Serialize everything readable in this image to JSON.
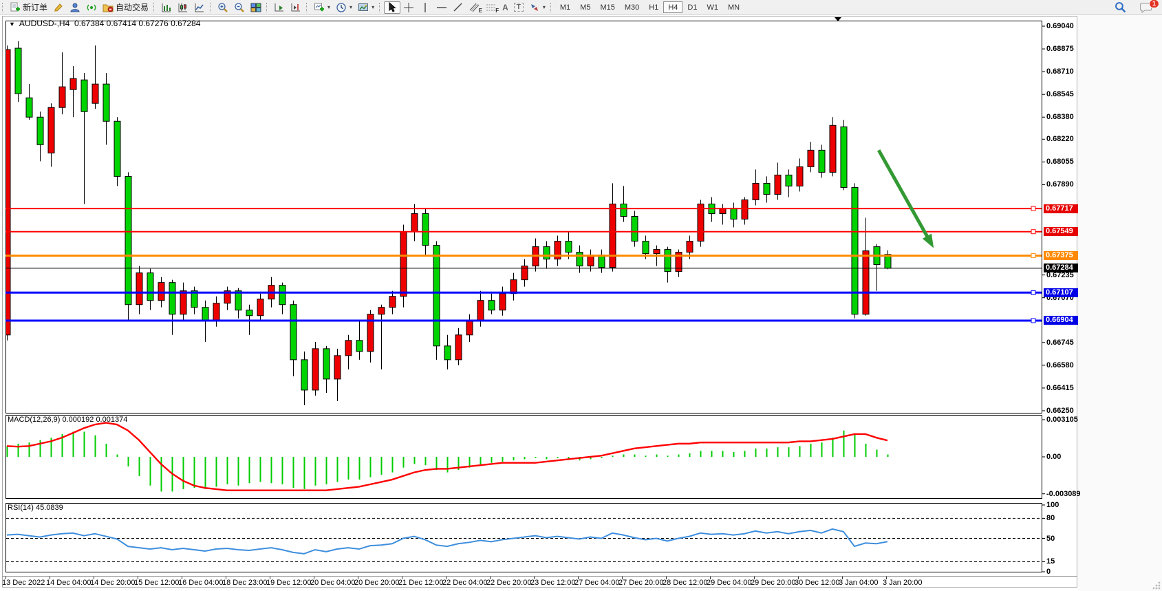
{
  "window": {
    "symbol_period": "AUDUSD-,H4",
    "ohlc_line": "0.67384 0.67414 0.67276 0.67284",
    "open": "0.67384",
    "high": "0.67414",
    "low": "0.67276",
    "close": "0.67284"
  },
  "toolbar": {
    "new_order_label": "新订单",
    "auto_trading_label": "自动交易",
    "channel_tool_letter": "E",
    "fibo_tool_letter": "F",
    "text_tool_letter": "A",
    "text_label_tool_letter": "T",
    "timeframes": [
      "M1",
      "M5",
      "M15",
      "M30",
      "H1",
      "H4",
      "D1",
      "W1",
      "MN"
    ],
    "active_timeframe": "H4",
    "chat_badge": "1"
  },
  "price_axis": {
    "ticks": [
      "0.69040",
      "0.68875",
      "0.68710",
      "0.68545",
      "0.68380",
      "0.68220",
      "0.68055",
      "0.67890",
      "0.67235",
      "0.67070",
      "0.66745",
      "0.66580",
      "0.66415",
      "0.66250"
    ],
    "current_price": {
      "label": "0.67284",
      "bg": "#000000"
    }
  },
  "macd_panel": {
    "name": "MACD(12,26,9)",
    "value": "0.000192",
    "signal": "0.001374",
    "axis_ticks": [
      "0.003105",
      "0.00",
      "-0.003089"
    ]
  },
  "rsi_panel": {
    "name": "RSI(14)",
    "value": "45.0839",
    "axis_ticks": [
      "100",
      "80",
      "50",
      "15",
      "0"
    ]
  },
  "time_axis": [
    "13 Dec 2022",
    "14 Dec 04:00",
    "14 Dec 20:00",
    "15 Dec 12:00",
    "16 Dec 04:00",
    "18 Dec 23:00",
    "19 Dec 12:00",
    "20 Dec 04:00",
    "20 Dec 20:00",
    "21 Dec 12:00",
    "22 Dec 04:00",
    "22 Dec 20:00",
    "23 Dec 12:00",
    "27 Dec 04:00",
    "27 Dec 20:00",
    "28 Dec 12:00",
    "29 Dec 04:00",
    "29 Dec 20:00",
    "30 Dec 12:00",
    "3 Jan 04:00",
    "3 Jan 20:00"
  ],
  "chart_data": [
    {
      "type": "candlestick",
      "symbol": "AUDUSD-",
      "timeframe": "H4",
      "ylim": [
        0.66235,
        0.6908
      ],
      "grid": false,
      "color_convention": "red = bullish, green = bearish",
      "up_color": "#EE0000",
      "down_color": "#00D400",
      "x_labels_every_bars": 4,
      "candles": [
        [
          0.668,
          0.689,
          0.6676,
          0.6887
        ],
        [
          0.6888,
          0.6893,
          0.6849,
          0.6855
        ],
        [
          0.6852,
          0.6862,
          0.6836,
          0.6838
        ],
        [
          0.6838,
          0.6842,
          0.6806,
          0.6818
        ],
        [
          0.6812,
          0.6848,
          0.6802,
          0.6845
        ],
        [
          0.6845,
          0.6885,
          0.684,
          0.686
        ],
        [
          0.6858,
          0.6875,
          0.6838,
          0.6866
        ],
        [
          0.6865,
          0.687,
          0.6775,
          0.6842
        ],
        [
          0.6848,
          0.689,
          0.6844,
          0.6862
        ],
        [
          0.6862,
          0.687,
          0.6818,
          0.6835
        ],
        [
          0.6835,
          0.6838,
          0.6788,
          0.6795
        ],
        [
          0.6795,
          0.6798,
          0.669,
          0.6702
        ],
        [
          0.6702,
          0.673,
          0.6695,
          0.6725
        ],
        [
          0.6725,
          0.6728,
          0.6698,
          0.6705
        ],
        [
          0.6705,
          0.6722,
          0.67,
          0.6718
        ],
        [
          0.6718,
          0.672,
          0.668,
          0.6695
        ],
        [
          0.6695,
          0.6718,
          0.669,
          0.6712
        ],
        [
          0.6712,
          0.6715,
          0.6695,
          0.67
        ],
        [
          0.67,
          0.6705,
          0.6675,
          0.669
        ],
        [
          0.669,
          0.6708,
          0.6686,
          0.6703
        ],
        [
          0.6703,
          0.6715,
          0.6698,
          0.6712
        ],
        [
          0.6712,
          0.6714,
          0.6692,
          0.6698
        ],
        [
          0.6698,
          0.6702,
          0.668,
          0.6694
        ],
        [
          0.6694,
          0.671,
          0.669,
          0.6706
        ],
        [
          0.6706,
          0.6722,
          0.67,
          0.6716
        ],
        [
          0.6716,
          0.6718,
          0.6695,
          0.6702
        ],
        [
          0.6702,
          0.6705,
          0.665,
          0.6662
        ],
        [
          0.6662,
          0.6668,
          0.6629,
          0.664
        ],
        [
          0.664,
          0.6675,
          0.6636,
          0.667
        ],
        [
          0.667,
          0.6672,
          0.6638,
          0.6648
        ],
        [
          0.6648,
          0.667,
          0.6632,
          0.6665
        ],
        [
          0.6665,
          0.668,
          0.6655,
          0.6676
        ],
        [
          0.6676,
          0.669,
          0.6662,
          0.6668
        ],
        [
          0.6668,
          0.6698,
          0.666,
          0.6695
        ],
        [
          0.6695,
          0.6702,
          0.6655,
          0.67
        ],
        [
          0.67,
          0.6712,
          0.6695,
          0.6708
        ],
        [
          0.6708,
          0.676,
          0.67,
          0.6755
        ],
        [
          0.6755,
          0.6775,
          0.6748,
          0.6768
        ],
        [
          0.6768,
          0.6772,
          0.6738,
          0.6745
        ],
        [
          0.6745,
          0.6748,
          0.6662,
          0.6672
        ],
        [
          0.6672,
          0.668,
          0.6655,
          0.6662
        ],
        [
          0.6662,
          0.6685,
          0.6658,
          0.668
        ],
        [
          0.668,
          0.6695,
          0.6675,
          0.669
        ],
        [
          0.669,
          0.6712,
          0.6686,
          0.6705
        ],
        [
          0.6705,
          0.671,
          0.6695,
          0.6698
        ],
        [
          0.6698,
          0.6715,
          0.6694,
          0.671
        ],
        [
          0.671,
          0.6725,
          0.6705,
          0.672
        ],
        [
          0.672,
          0.6735,
          0.6715,
          0.673
        ],
        [
          0.673,
          0.675,
          0.6726,
          0.6744
        ],
        [
          0.6744,
          0.6748,
          0.6728,
          0.6735
        ],
        [
          0.6735,
          0.6752,
          0.673,
          0.6748
        ],
        [
          0.6748,
          0.6755,
          0.6735,
          0.674
        ],
        [
          0.674,
          0.6745,
          0.6725,
          0.673
        ],
        [
          0.673,
          0.6742,
          0.6726,
          0.6738
        ],
        [
          0.6738,
          0.6742,
          0.6725,
          0.6729
        ],
        [
          0.6729,
          0.679,
          0.6726,
          0.6775
        ],
        [
          0.6775,
          0.6788,
          0.6762,
          0.6766
        ],
        [
          0.6766,
          0.677,
          0.6744,
          0.6748
        ],
        [
          0.6748,
          0.6752,
          0.6735,
          0.6739
        ],
        [
          0.6739,
          0.6745,
          0.673,
          0.6742
        ],
        [
          0.6742,
          0.6744,
          0.6718,
          0.6726
        ],
        [
          0.6726,
          0.6742,
          0.6722,
          0.674
        ],
        [
          0.674,
          0.6752,
          0.6735,
          0.6748
        ],
        [
          0.6748,
          0.6778,
          0.6744,
          0.6775
        ],
        [
          0.6775,
          0.678,
          0.6762,
          0.6768
        ],
        [
          0.6768,
          0.6775,
          0.676,
          0.6772
        ],
        [
          0.6772,
          0.6776,
          0.6758,
          0.6764
        ],
        [
          0.6764,
          0.678,
          0.676,
          0.6778
        ],
        [
          0.6778,
          0.68,
          0.6774,
          0.679
        ],
        [
          0.679,
          0.6795,
          0.6776,
          0.6782
        ],
        [
          0.6782,
          0.6805,
          0.6778,
          0.6796
        ],
        [
          0.6796,
          0.68,
          0.678,
          0.6788
        ],
        [
          0.6788,
          0.6808,
          0.6784,
          0.6802
        ],
        [
          0.6802,
          0.682,
          0.6798,
          0.6814
        ],
        [
          0.6814,
          0.6818,
          0.6794,
          0.6798
        ],
        [
          0.6798,
          0.6838,
          0.6795,
          0.6832
        ],
        [
          0.6831,
          0.6836,
          0.6785,
          0.6787
        ],
        [
          0.6787,
          0.679,
          0.6692,
          0.6695
        ],
        [
          0.6695,
          0.6765,
          0.6694,
          0.6741
        ],
        [
          0.6744,
          0.6746,
          0.6712,
          0.6731
        ],
        [
          0.67384,
          0.67414,
          0.67276,
          0.67284
        ]
      ],
      "levels": [
        {
          "price": "0.67717",
          "value": 0.67717,
          "line_color": "#FF0000",
          "label_bg": "#E60000",
          "width": 2
        },
        {
          "price": "0.67549",
          "value": 0.67549,
          "line_color": "#FF0000",
          "label_bg": "#E60000",
          "width": 2
        },
        {
          "price": "0.67375",
          "value": 0.67375,
          "line_color": "#FF8A00",
          "label_bg": "#FF8A00",
          "width": 3
        },
        {
          "price": "0.67107",
          "value": 0.67107,
          "line_color": "#0000FF",
          "label_bg": "#0000E6",
          "width": 3
        },
        {
          "price": "0.66904",
          "value": 0.66904,
          "line_color": "#0000FF",
          "label_bg": "#0000E6",
          "width": 3
        }
      ],
      "current_price": {
        "value": 0.67284,
        "label": "0.67284",
        "line_color": "#000000",
        "label_bg": "#000000"
      },
      "annotation": {
        "type": "down-arrow",
        "color": "#339933",
        "from": {
          "bar": 79.2,
          "price": 0.6814
        },
        "to": {
          "bar": 84.2,
          "price": 0.6743
        }
      }
    },
    {
      "type": "bar",
      "subtype": "macd",
      "title": "MACD(12,26,9)",
      "ylim": [
        -0.003089,
        0.003105
      ],
      "hist_color": "#00CC00",
      "signal_color": "#FF0000",
      "histogram": [
        0.0009,
        0.0011,
        0.0012,
        0.0014,
        0.0016,
        0.0019,
        0.0021,
        0.0021,
        0.0018,
        0.0011,
        0.0002,
        -0.0008,
        -0.0016,
        -0.0024,
        -0.0029,
        -0.0029,
        -0.0027,
        -0.0026,
        -0.0027,
        -0.0025,
        -0.0023,
        -0.0024,
        -0.0022,
        -0.0021,
        -0.0022,
        -0.0023,
        -0.0026,
        -0.0027,
        -0.0024,
        -0.0023,
        -0.0021,
        -0.0019,
        -0.0019,
        -0.0017,
        -0.0015,
        -0.0013,
        -0.0009,
        -0.0006,
        -0.0007,
        -0.0011,
        -0.0013,
        -0.0011,
        -0.0009,
        -0.0007,
        -0.0005,
        -0.0004,
        -0.0003,
        -0.0002,
        -0.0001,
        -0.0002,
        -0.0001,
        -0.0002,
        -0.0003,
        -0.0002,
        -0.0001,
        0.0001,
        0.0002,
        0.0002,
        0.0001,
        0.0002,
        0.0001,
        0.0002,
        0.0003,
        0.0005,
        0.0005,
        0.0005,
        0.0004,
        0.0005,
        0.0007,
        0.0007,
        0.0008,
        0.0008,
        0.0009,
        0.0011,
        0.0012,
        0.0016,
        0.0022,
        0.0019,
        0.0011,
        0.0006,
        0.0002
      ],
      "signal": [
        0.0009,
        0.00085,
        0.0009,
        0.0011,
        0.0013,
        0.0016,
        0.002,
        0.0024,
        0.0027,
        0.00285,
        0.0027,
        0.0022,
        0.0014,
        0.0004,
        -0.0006,
        -0.0014,
        -0.002,
        -0.0024,
        -0.0026,
        -0.0027,
        -0.0028,
        -0.0028,
        -0.0028,
        -0.0028,
        -0.0028,
        -0.0028,
        -0.0028,
        -0.0028,
        -0.0028,
        -0.0028,
        -0.0027,
        -0.0026,
        -0.0025,
        -0.0023,
        -0.0021,
        -0.0019,
        -0.0016,
        -0.0013,
        -0.0011,
        -0.001,
        -0.001,
        -0.0009,
        -0.0008,
        -0.0007,
        -0.0006,
        -0.0005,
        -0.0005,
        -0.0005,
        -0.0005,
        -0.0004,
        -0.0003,
        -0.0002,
        -0.0001,
        0.0,
        0.0001,
        0.0003,
        0.0005,
        0.0007,
        0.0008,
        0.0009,
        0.001,
        0.0011,
        0.0011,
        0.0012,
        0.0012,
        0.0012,
        0.0012,
        0.0012,
        0.0012,
        0.0012,
        0.0012,
        0.0012,
        0.0013,
        0.0013,
        0.0014,
        0.0015,
        0.0017,
        0.0019,
        0.0019,
        0.0016,
        0.00137
      ]
    },
    {
      "type": "line",
      "subtype": "rsi",
      "title": "RSI(14)",
      "ylim": [
        0,
        100
      ],
      "dashed_levels": [
        80,
        50,
        15
      ],
      "line_color": "#3E8EDE",
      "values": [
        55,
        56,
        54,
        52,
        55,
        57,
        58,
        54,
        57,
        53,
        49,
        38,
        36,
        34,
        36,
        33,
        35,
        33,
        31,
        34,
        35,
        33,
        32,
        34,
        36,
        33,
        29,
        27,
        33,
        30,
        34,
        36,
        34,
        39,
        40,
        42,
        50,
        53,
        48,
        40,
        38,
        42,
        44,
        47,
        45,
        48,
        50,
        52,
        54,
        51,
        53,
        51,
        49,
        52,
        50,
        58,
        55,
        51,
        48,
        50,
        46,
        50,
        53,
        58,
        56,
        57,
        55,
        57,
        61,
        58,
        60,
        57,
        60,
        62,
        58,
        64,
        60,
        38,
        43,
        42,
        45.08
      ]
    }
  ]
}
